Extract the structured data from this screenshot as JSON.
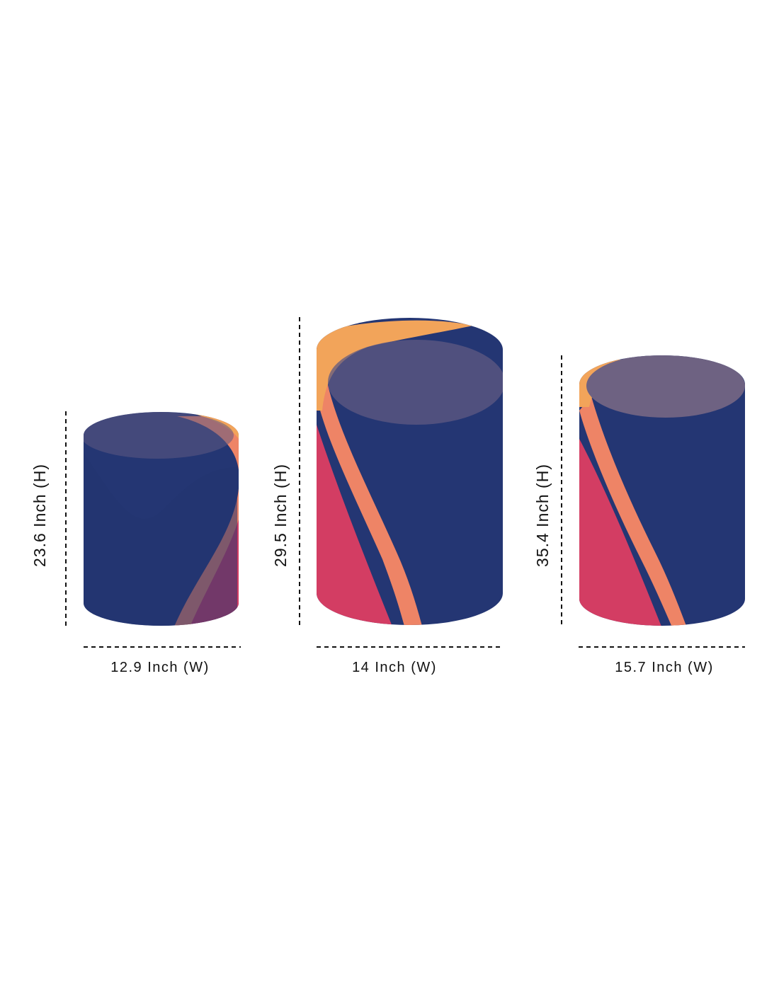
{
  "colors": {
    "navy": "#243673",
    "top_fill": "#5f5a82",
    "orange": "#f2a45a",
    "pink": "#d33d63",
    "stripe": "#ee8466",
    "background": "#ffffff",
    "guide_line": "#111111"
  },
  "cylinders": [
    {
      "height_label": "23.6 Inch (H)",
      "width_label": "12.9 Inch (W)"
    },
    {
      "height_label": "29.5 Inch (H)",
      "width_label": "14 Inch (W)"
    },
    {
      "height_label": "35.4 Inch (H)",
      "width_label": "15.7 Inch (W)"
    }
  ]
}
